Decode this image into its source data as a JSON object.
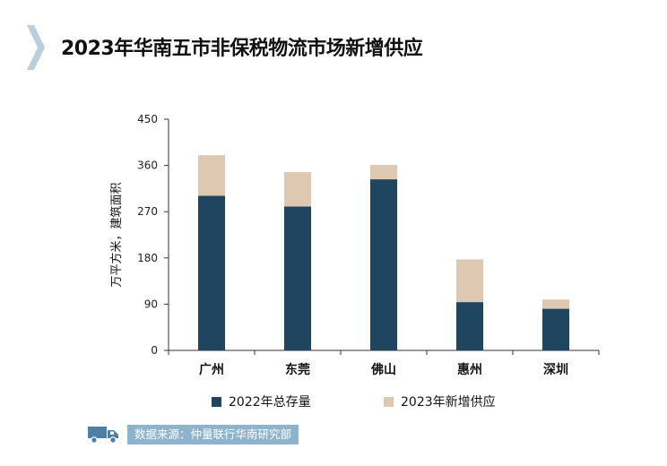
{
  "title": "2023年华南五市非保税物流市场新增供应",
  "colors": {
    "accent_chevron": "#b9cfdc",
    "stock_bar": "#1f4560",
    "new_supply_bar": "#dfc8b2",
    "axis": "#333333",
    "source_badge": "#8fb3cc"
  },
  "chart_data": {
    "type": "bar",
    "stacked": true,
    "categories": [
      "广州",
      "东莞",
      "佛山",
      "惠州",
      "深圳"
    ],
    "series": [
      {
        "name": "2022年总存量",
        "values": [
          301,
          280,
          333,
          94,
          81
        ]
      },
      {
        "name": "2023年新增供应",
        "values": [
          79,
          67,
          28,
          83,
          18
        ]
      }
    ],
    "ylabel": "万平方米，建筑面积",
    "ylim": [
      0,
      450
    ],
    "yticks": [
      "0",
      "90",
      "180",
      "270",
      "360",
      "450"
    ],
    "grid": false,
    "legend_position": "bottom"
  },
  "source": {
    "icon": "truck-icon",
    "text": "数据来源：仲量联行华南研究部"
  }
}
